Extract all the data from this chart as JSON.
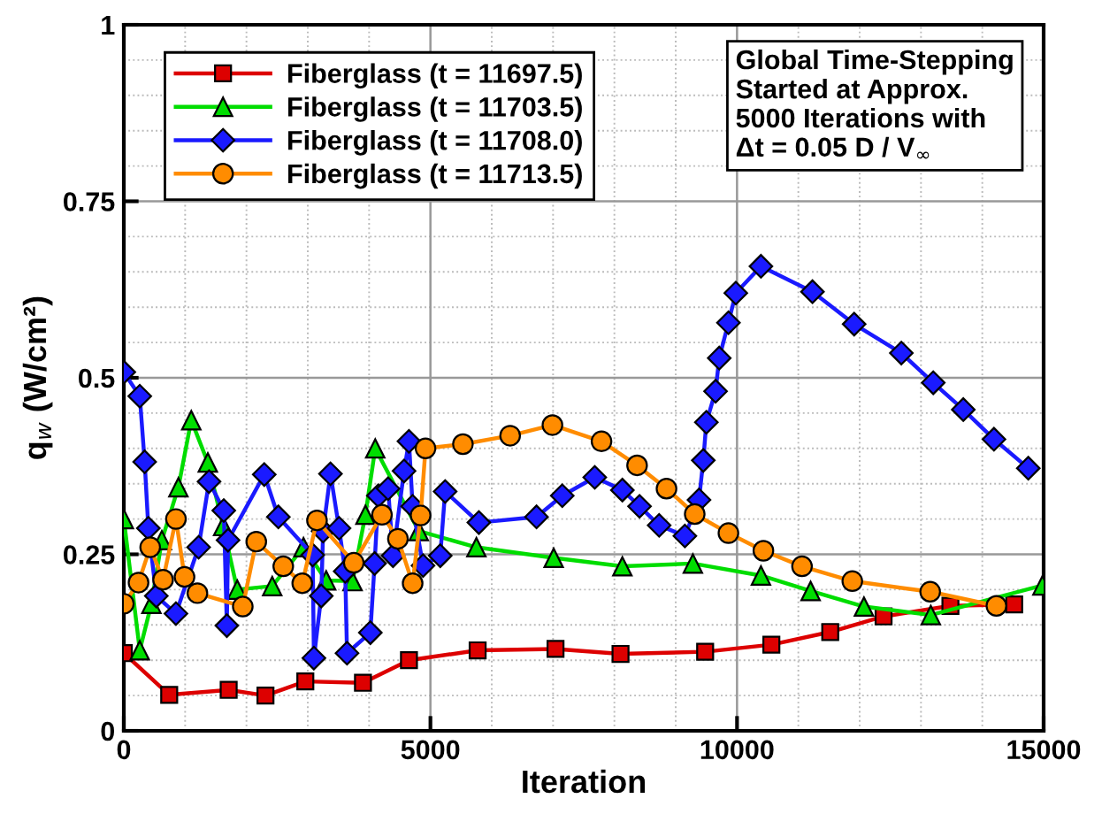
{
  "chart_data": {
    "type": "line",
    "xlabel": "Iteration",
    "ylabel": "q$_{w}$ (W/cm²)",
    "xlim": [
      0,
      15000
    ],
    "ylim": [
      0,
      1
    ],
    "xticks": [
      0,
      5000,
      10000,
      15000
    ],
    "yticks": [
      0,
      0.25,
      0.5,
      0.75,
      1
    ],
    "grid": true,
    "legend": "top left",
    "annotations": [
      "Global Time-Stepping\nStarted at Approx.\n5000 Iterations with\nΔt = 0.05 D / V$_{∞}$"
    ],
    "series": [
      {
        "name": "Fiberglass (t = 11697.5)",
        "color": "#dd0000",
        "marker": "square",
        "x": [
          0,
          740,
          1710,
          2310,
          2960,
          3900,
          4650,
          5770,
          7040,
          8100,
          9480,
          10560,
          11520,
          12390,
          13480,
          14520
        ],
        "values": [
          0.11,
          0.051,
          0.058,
          0.05,
          0.07,
          0.068,
          0.1,
          0.114,
          0.116,
          0.109,
          0.112,
          0.122,
          0.14,
          0.162,
          0.177,
          0.179
        ]
      },
      {
        "name": "Fiberglass (t = 11703.5)",
        "color": "#00dd00",
        "marker": "triangle",
        "x": [
          0,
          260,
          450,
          620,
          890,
          1100,
          1370,
          1620,
          1850,
          2420,
          2930,
          3300,
          3730,
          3940,
          4100,
          4810,
          5750,
          7010,
          8130,
          9280,
          10390,
          11200,
          12070,
          13160,
          14980
        ],
        "values": [
          0.3,
          0.114,
          0.18,
          0.27,
          0.345,
          0.44,
          0.38,
          0.29,
          0.2,
          0.205,
          0.26,
          0.213,
          0.212,
          0.306,
          0.4,
          0.283,
          0.26,
          0.245,
          0.233,
          0.237,
          0.22,
          0.198,
          0.176,
          0.164,
          0.206
        ]
      },
      {
        "name": "Fiberglass (t = 11708.0)",
        "color": "#1a1aff",
        "marker": "diamond",
        "x": [
          0,
          260,
          340,
          400,
          530,
          850,
          1220,
          1390,
          1630,
          1680,
          1700,
          2290,
          2520,
          3080,
          3100,
          3220,
          3250,
          3370,
          3510,
          3610,
          3640,
          4020,
          4090,
          4150,
          4310,
          4390,
          4570,
          4650,
          4710,
          4880,
          5160,
          5240,
          5790,
          6730,
          7150,
          7680,
          8130,
          8410,
          8730,
          9150,
          9380,
          9450,
          9500,
          9650,
          9710,
          9860,
          9980,
          10390,
          11230,
          11910,
          12680,
          13200,
          13690,
          14190,
          14750
        ],
        "values": [
          0.508,
          0.474,
          0.381,
          0.287,
          0.191,
          0.166,
          0.26,
          0.353,
          0.312,
          0.149,
          0.27,
          0.363,
          0.303,
          0.249,
          0.103,
          0.191,
          0.283,
          0.364,
          0.287,
          0.226,
          0.11,
          0.139,
          0.237,
          0.333,
          0.343,
          0.248,
          0.368,
          0.41,
          0.318,
          0.234,
          0.248,
          0.339,
          0.295,
          0.303,
          0.333,
          0.359,
          0.341,
          0.318,
          0.291,
          0.276,
          0.327,
          0.383,
          0.437,
          0.481,
          0.528,
          0.578,
          0.62,
          0.658,
          0.622,
          0.576,
          0.535,
          0.493,
          0.455,
          0.413,
          0.372
        ]
      },
      {
        "name": "Fiberglass (t = 11713.5)",
        "color": "#ff8c00",
        "marker": "circle",
        "x": [
          0,
          240,
          430,
          640,
          850,
          990,
          1200,
          1940,
          2160,
          2600,
          2910,
          3150,
          3750,
          4210,
          4470,
          4710,
          4840,
          4920,
          5530,
          6300,
          6990,
          7790,
          8370,
          8850,
          9310,
          9860,
          10430,
          11060,
          11880,
          13150,
          14230
        ],
        "values": [
          0.18,
          0.21,
          0.26,
          0.214,
          0.3,
          0.218,
          0.195,
          0.176,
          0.268,
          0.233,
          0.209,
          0.298,
          0.238,
          0.306,
          0.272,
          0.209,
          0.305,
          0.4,
          0.406,
          0.418,
          0.433,
          0.41,
          0.376,
          0.343,
          0.307,
          0.28,
          0.255,
          0.233,
          0.212,
          0.197,
          0.177
        ]
      }
    ]
  }
}
